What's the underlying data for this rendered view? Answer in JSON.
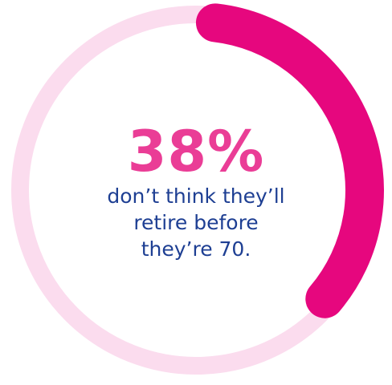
{
  "chart_data": {
    "type": "pie",
    "variant": "donut",
    "slices": [
      {
        "value": 38,
        "color": "#e6077e"
      },
      {
        "value": 62,
        "color": "#fbdcee"
      }
    ],
    "start_angle_deg": 0,
    "direction": "clockwise"
  },
  "headline": {
    "value": "38%",
    "color": "#ea3d96"
  },
  "caption": {
    "lines": [
      "don’t think they’ll",
      "retire before",
      "they’re 70."
    ],
    "color": "#1e3f93"
  }
}
